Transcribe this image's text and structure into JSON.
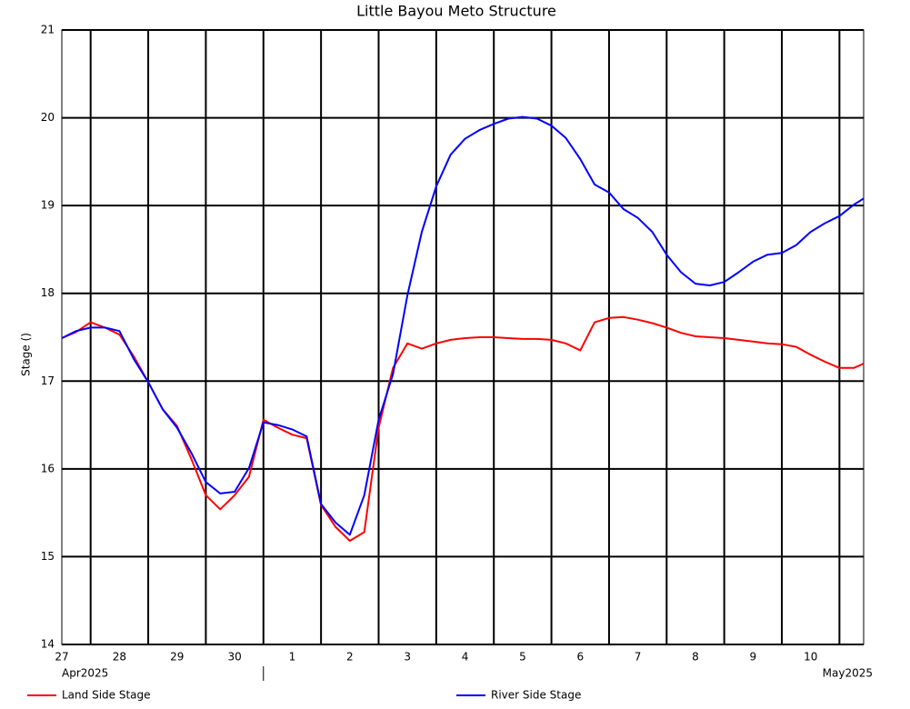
{
  "chart_data": {
    "type": "line",
    "title": "Little Bayou Meto Structure",
    "y_label": "Stage ()",
    "x": [
      0.5,
      0.75,
      1,
      1.25,
      1.5,
      1.75,
      2,
      2.25,
      2.5,
      2.75,
      3,
      3.25,
      3.5,
      3.75,
      4,
      4.25,
      4.5,
      4.75,
      5,
      5.25,
      5.5,
      5.75,
      6,
      6.25,
      6.5,
      6.75,
      7,
      7.25,
      7.5,
      7.75,
      8,
      8.25,
      8.5,
      8.75,
      9,
      9.25,
      9.5,
      9.75,
      10,
      10.25,
      10.5,
      10.75,
      11,
      11.25,
      11.5,
      11.75,
      12,
      12.25,
      12.5,
      12.75,
      13,
      13.25,
      13.5,
      13.75,
      14,
      14.25,
      14.42
    ],
    "series": [
      {
        "name": "Land Side Stage",
        "color": "#ff0000",
        "values": [
          17.49,
          17.56,
          17.67,
          17.61,
          17.53,
          17.28,
          16.99,
          16.68,
          16.49,
          16.11,
          15.7,
          15.54,
          15.7,
          15.91,
          16.56,
          16.47,
          16.39,
          16.35,
          15.59,
          15.34,
          15.18,
          15.28,
          16.47,
          17.15,
          17.43,
          17.37,
          17.43,
          17.47,
          17.49,
          17.5,
          17.5,
          17.49,
          17.48,
          17.48,
          17.47,
          17.43,
          17.35,
          17.67,
          17.72,
          17.73,
          17.7,
          17.66,
          17.61,
          17.55,
          17.51,
          17.5,
          17.49,
          17.47,
          17.45,
          17.43,
          17.42,
          17.39,
          17.3,
          17.22,
          17.15,
          17.15,
          17.2
        ]
      },
      {
        "name": "River Side Stage",
        "color": "#0000ff",
        "values": [
          17.49,
          17.57,
          17.61,
          17.61,
          17.57,
          17.25,
          16.99,
          16.68,
          16.47,
          16.18,
          15.85,
          15.72,
          15.74,
          16.01,
          16.53,
          16.5,
          16.45,
          16.37,
          15.6,
          15.39,
          15.25,
          15.7,
          16.56,
          17.08,
          17.98,
          18.7,
          19.22,
          19.58,
          19.76,
          19.86,
          19.93,
          19.99,
          20.01,
          19.99,
          19.91,
          19.77,
          19.53,
          19.24,
          19.15,
          18.96,
          18.86,
          18.7,
          18.44,
          18.24,
          18.11,
          18.09,
          18.13,
          18.24,
          18.36,
          18.44,
          18.46,
          18.55,
          18.7,
          18.8,
          18.88,
          19.01,
          19.08
        ]
      }
    ],
    "xlim": [
      0.5,
      14.42
    ],
    "xgrid": [
      1,
      2,
      3,
      4,
      5,
      6,
      7,
      8,
      9,
      10,
      11,
      12,
      13,
      14
    ],
    "xticks": [
      {
        "value": 0.5,
        "label": "27"
      },
      {
        "value": 1.5,
        "label": "28"
      },
      {
        "value": 2.5,
        "label": "29"
      },
      {
        "value": 3.5,
        "label": "30"
      },
      {
        "value": 4.5,
        "label": "1"
      },
      {
        "value": 5.5,
        "label": "2"
      },
      {
        "value": 6.5,
        "label": "3"
      },
      {
        "value": 7.5,
        "label": "4"
      },
      {
        "value": 8.5,
        "label": "5"
      },
      {
        "value": 9.5,
        "label": "6"
      },
      {
        "value": 10.5,
        "label": "7"
      },
      {
        "value": 11.5,
        "label": "8"
      },
      {
        "value": 12.5,
        "label": "9"
      },
      {
        "value": 13.5,
        "label": "10"
      }
    ],
    "x_period_labels": [
      {
        "value": 0.5,
        "label": "Apr2025"
      },
      {
        "value": 14.42,
        "label": "May2025"
      }
    ],
    "month_break": 4,
    "ylim": [
      14,
      21
    ],
    "yticks": [
      14,
      15,
      16,
      17,
      18,
      19,
      20,
      21
    ],
    "grid": true,
    "legend": "bottom"
  }
}
